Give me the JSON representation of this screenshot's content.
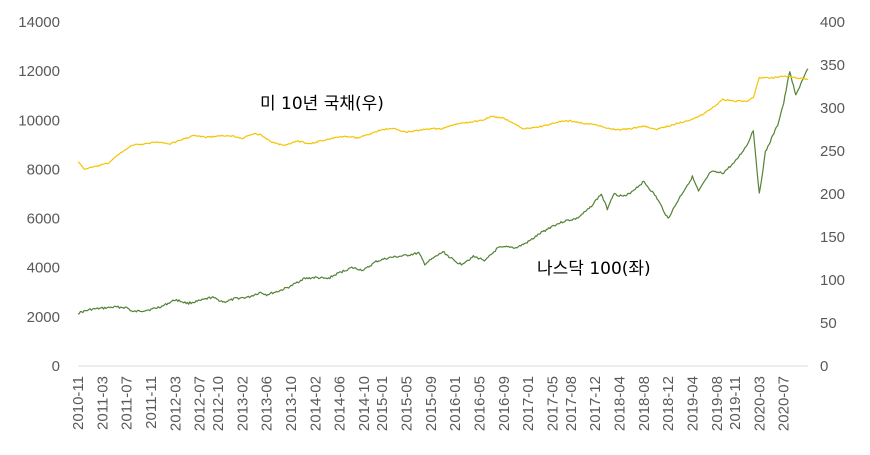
{
  "chart_data": {
    "type": "line",
    "left_axis": {
      "min": 0,
      "max": 14000,
      "ticks": [
        "0",
        "2000",
        "4000",
        "6000",
        "8000",
        "10000",
        "12000",
        "14000"
      ]
    },
    "right_axis": {
      "min": 0,
      "max": 400,
      "ticks": [
        "0",
        "50",
        "100",
        "150",
        "200",
        "250",
        "300",
        "350",
        "400"
      ]
    },
    "x_start": "2010-11",
    "x_end": "2020-11",
    "x_ticks": [
      "2010-11",
      "2011-03",
      "2011-07",
      "2011-11",
      "2012-03",
      "2012-07",
      "2012-10",
      "2013-02",
      "2013-06",
      "2013-10",
      "2014-02",
      "2014-06",
      "2014-10",
      "2015-01",
      "2015-05",
      "2015-09",
      "2016-01",
      "2016-05",
      "2016-09",
      "2017-01",
      "2017-05",
      "2017-08",
      "2017-12",
      "2018-04",
      "2018-08",
      "2018-12",
      "2019-04",
      "2019-08",
      "2019-11",
      "2020-03",
      "2020-07"
    ],
    "grid": false,
    "series": [
      {
        "name": "나스닥 100(좌)",
        "axis": "left",
        "color": "#548235",
        "points": [
          [
            "2010-11",
            2150
          ],
          [
            "2011-01",
            2300
          ],
          [
            "2011-03",
            2350
          ],
          [
            "2011-05",
            2400
          ],
          [
            "2011-07",
            2380
          ],
          [
            "2011-08",
            2200
          ],
          [
            "2011-11",
            2300
          ],
          [
            "2012-01",
            2450
          ],
          [
            "2012-03",
            2700
          ],
          [
            "2012-05",
            2550
          ],
          [
            "2012-07",
            2650
          ],
          [
            "2012-09",
            2800
          ],
          [
            "2012-10",
            2700
          ],
          [
            "2012-11",
            2600
          ],
          [
            "2013-01",
            2750
          ],
          [
            "2013-03",
            2800
          ],
          [
            "2013-05",
            3000
          ],
          [
            "2013-06",
            2900
          ],
          [
            "2013-08",
            3050
          ],
          [
            "2013-10",
            3250
          ],
          [
            "2013-12",
            3550
          ],
          [
            "2014-02",
            3600
          ],
          [
            "2014-04",
            3550
          ],
          [
            "2014-06",
            3800
          ],
          [
            "2014-08",
            4000
          ],
          [
            "2014-10",
            3900
          ],
          [
            "2014-12",
            4250
          ],
          [
            "2015-02",
            4400
          ],
          [
            "2015-05",
            4500
          ],
          [
            "2015-07",
            4600
          ],
          [
            "2015-08",
            4150
          ],
          [
            "2015-11",
            4650
          ],
          [
            "2016-01",
            4250
          ],
          [
            "2016-02",
            4150
          ],
          [
            "2016-04",
            4450
          ],
          [
            "2016-06",
            4300
          ],
          [
            "2016-08",
            4800
          ],
          [
            "2016-10",
            4850
          ],
          [
            "2016-11",
            4800
          ],
          [
            "2017-01",
            5050
          ],
          [
            "2017-03",
            5400
          ],
          [
            "2017-05",
            5700
          ],
          [
            "2017-07",
            5900
          ],
          [
            "2017-09",
            6000
          ],
          [
            "2017-11",
            6400
          ],
          [
            "2018-01",
            7000
          ],
          [
            "2018-02",
            6400
          ],
          [
            "2018-03",
            7000
          ],
          [
            "2018-05",
            6900
          ],
          [
            "2018-08",
            7500
          ],
          [
            "2018-10",
            6900
          ],
          [
            "2018-12",
            6000
          ],
          [
            "2019-02",
            6900
          ],
          [
            "2019-04",
            7700
          ],
          [
            "2019-05",
            7100
          ],
          [
            "2019-07",
            7900
          ],
          [
            "2019-09",
            7850
          ],
          [
            "2019-11",
            8300
          ],
          [
            "2020-01",
            9000
          ],
          [
            "2020-02",
            9600
          ],
          [
            "2020-03",
            7000
          ],
          [
            "2020-04",
            8700
          ],
          [
            "2020-06",
            9800
          ],
          [
            "2020-07",
            10700
          ],
          [
            "2020-08",
            12000
          ],
          [
            "2020-09",
            11000
          ],
          [
            "2020-10",
            11600
          ],
          [
            "2020-11",
            12100
          ]
        ]
      },
      {
        "name": "미 10년 국채(우)",
        "axis": "right",
        "color": "#f4c400",
        "points": [
          [
            "2010-11",
            238
          ],
          [
            "2010-12",
            229
          ],
          [
            "2011-02",
            232
          ],
          [
            "2011-04",
            236
          ],
          [
            "2011-06",
            248
          ],
          [
            "2011-08",
            257
          ],
          [
            "2011-10",
            258
          ],
          [
            "2011-12",
            261
          ],
          [
            "2012-02",
            258
          ],
          [
            "2012-04",
            263
          ],
          [
            "2012-06",
            268
          ],
          [
            "2012-08",
            266
          ],
          [
            "2012-10",
            267
          ],
          [
            "2012-12",
            268
          ],
          [
            "2013-02",
            265
          ],
          [
            "2013-04",
            270
          ],
          [
            "2013-05",
            269
          ],
          [
            "2013-07",
            260
          ],
          [
            "2013-09",
            256
          ],
          [
            "2013-11",
            262
          ],
          [
            "2014-01",
            258
          ],
          [
            "2014-03",
            262
          ],
          [
            "2014-05",
            265
          ],
          [
            "2014-07",
            267
          ],
          [
            "2014-09",
            265
          ],
          [
            "2014-11",
            270
          ],
          [
            "2015-01",
            275
          ],
          [
            "2015-03",
            276
          ],
          [
            "2015-05",
            272
          ],
          [
            "2015-07",
            274
          ],
          [
            "2015-09",
            276
          ],
          [
            "2015-11",
            276
          ],
          [
            "2016-01",
            281
          ],
          [
            "2016-03",
            283
          ],
          [
            "2016-05",
            285
          ],
          [
            "2016-07",
            290
          ],
          [
            "2016-09",
            288
          ],
          [
            "2016-11",
            281
          ],
          [
            "2016-12",
            276
          ],
          [
            "2017-02",
            277
          ],
          [
            "2017-04",
            280
          ],
          [
            "2017-06",
            284
          ],
          [
            "2017-08",
            285
          ],
          [
            "2017-10",
            282
          ],
          [
            "2017-12",
            281
          ],
          [
            "2018-02",
            276
          ],
          [
            "2018-04",
            275
          ],
          [
            "2018-06",
            276
          ],
          [
            "2018-08",
            279
          ],
          [
            "2018-10",
            275
          ],
          [
            "2018-12",
            279
          ],
          [
            "2019-02",
            283
          ],
          [
            "2019-04",
            287
          ],
          [
            "2019-06",
            294
          ],
          [
            "2019-08",
            304
          ],
          [
            "2019-09",
            310
          ],
          [
            "2019-11",
            308
          ],
          [
            "2020-01",
            308
          ],
          [
            "2020-02",
            312
          ],
          [
            "2020-03",
            335
          ],
          [
            "2020-05",
            335
          ],
          [
            "2020-07",
            337
          ],
          [
            "2020-08",
            337
          ],
          [
            "2020-09",
            335
          ],
          [
            "2020-11",
            333
          ]
        ]
      }
    ],
    "annotations": [
      {
        "text": "미 10년 국채(우)",
        "series": 1
      },
      {
        "text": "나스닥 100(좌)",
        "series": 0
      }
    ]
  }
}
